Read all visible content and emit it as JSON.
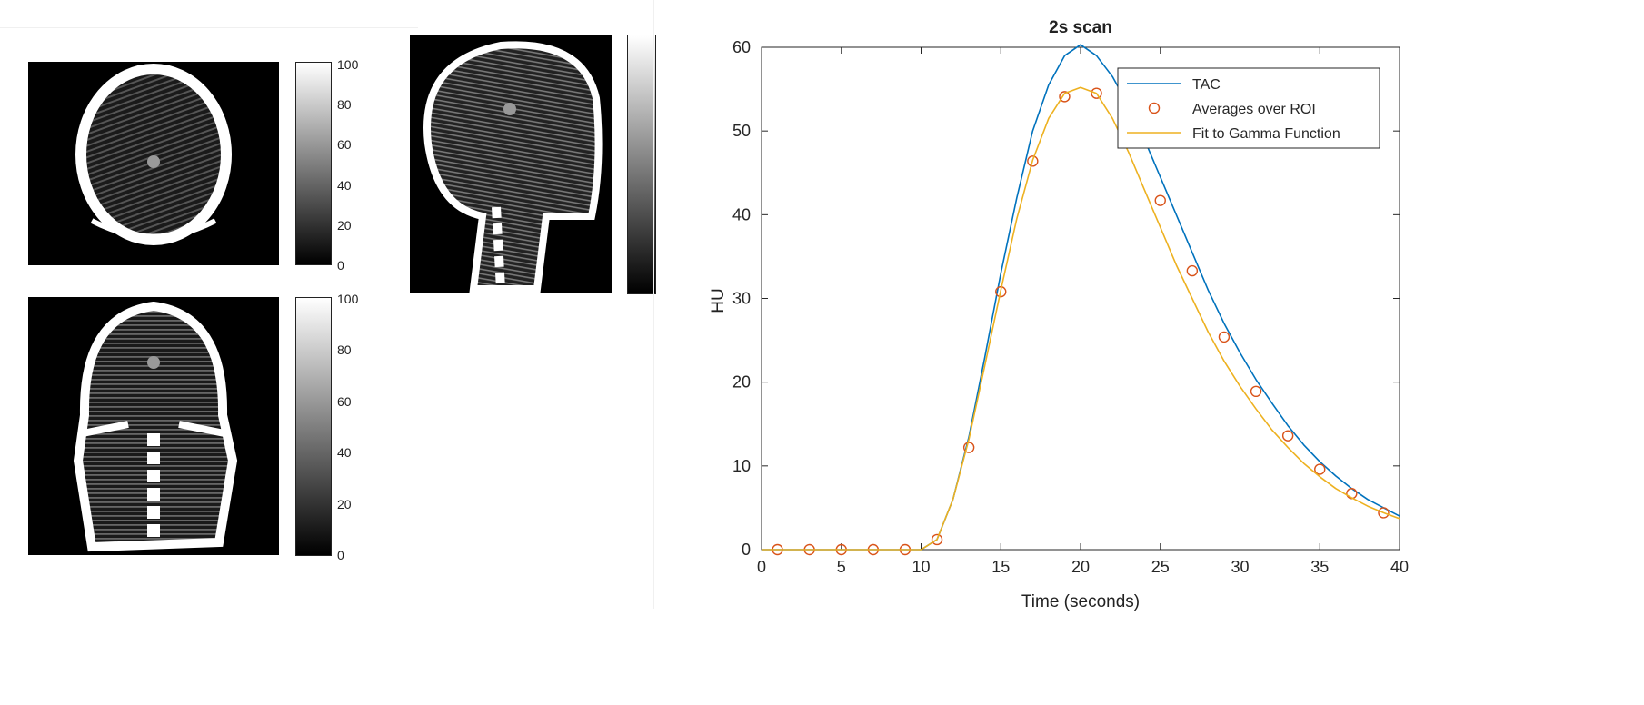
{
  "scan_panels": {
    "colorbar_ticks": [
      "0",
      "20",
      "40",
      "60",
      "80",
      "100"
    ],
    "views": [
      {
        "name": "axial",
        "colorbar_ticks_shown": true
      },
      {
        "name": "sagittal",
        "colorbar_ticks_shown": false
      },
      {
        "name": "coronal",
        "colorbar_ticks_shown": true
      }
    ]
  },
  "chart_data": {
    "type": "line",
    "title": "2s scan",
    "xlabel": "Time (seconds)",
    "ylabel": "HU",
    "xlim": [
      0,
      40
    ],
    "ylim": [
      0,
      60
    ],
    "xticks": [
      0,
      5,
      10,
      15,
      20,
      25,
      30,
      35,
      40
    ],
    "yticks": [
      0,
      10,
      20,
      30,
      40,
      50,
      60
    ],
    "grid": false,
    "legend_position": "top-right",
    "series": [
      {
        "name": "TAC",
        "style": "line",
        "color": "#0072BD",
        "x": [
          0,
          10,
          11,
          12,
          13,
          14,
          15,
          16,
          17,
          18,
          19,
          20,
          21,
          22,
          23,
          24,
          25,
          26,
          27,
          28,
          29,
          30,
          31,
          32,
          33,
          34,
          35,
          36,
          37,
          38,
          39,
          40
        ],
        "y": [
          0,
          0,
          1.2,
          6,
          13.5,
          23,
          33,
          42,
          50,
          55.5,
          59,
          60.3,
          59,
          56.5,
          53,
          49,
          44.5,
          40,
          35.5,
          31,
          27,
          23.5,
          20.3,
          17.5,
          14.8,
          12.5,
          10.5,
          8.8,
          7.3,
          6,
          5,
          4
        ]
      },
      {
        "name": "Averages over ROI",
        "style": "markers",
        "color": "#D95319",
        "x": [
          1,
          3,
          5,
          7,
          9,
          11,
          13,
          15,
          17,
          19,
          21,
          23,
          25,
          27,
          29,
          31,
          33,
          35,
          37,
          39
        ],
        "y": [
          0,
          0,
          0,
          0,
          0,
          1.2,
          12.2,
          30.8,
          46.4,
          54.1,
          54.5,
          51.6,
          41.7,
          33.3,
          25.4,
          18.9,
          13.6,
          9.6,
          6.7,
          4.4
        ]
      },
      {
        "name": "Fit to Gamma Function",
        "style": "line",
        "color": "#EDB120",
        "x": [
          0,
          10,
          11,
          12,
          13,
          14,
          15,
          16,
          17,
          18,
          19,
          20,
          21,
          22,
          23,
          24,
          25,
          26,
          27,
          28,
          29,
          30,
          31,
          32,
          33,
          34,
          35,
          36,
          37,
          38,
          39,
          40
        ],
        "y": [
          0,
          0,
          1.2,
          6,
          13.2,
          22,
          31,
          39.5,
          46.5,
          51.5,
          54.5,
          55.2,
          54.5,
          51.5,
          47.5,
          43,
          38.5,
          34,
          30,
          26,
          22.5,
          19.5,
          16.8,
          14.3,
          12.2,
          10.3,
          8.7,
          7.3,
          6.2,
          5.2,
          4.4,
          3.7
        ]
      }
    ]
  }
}
